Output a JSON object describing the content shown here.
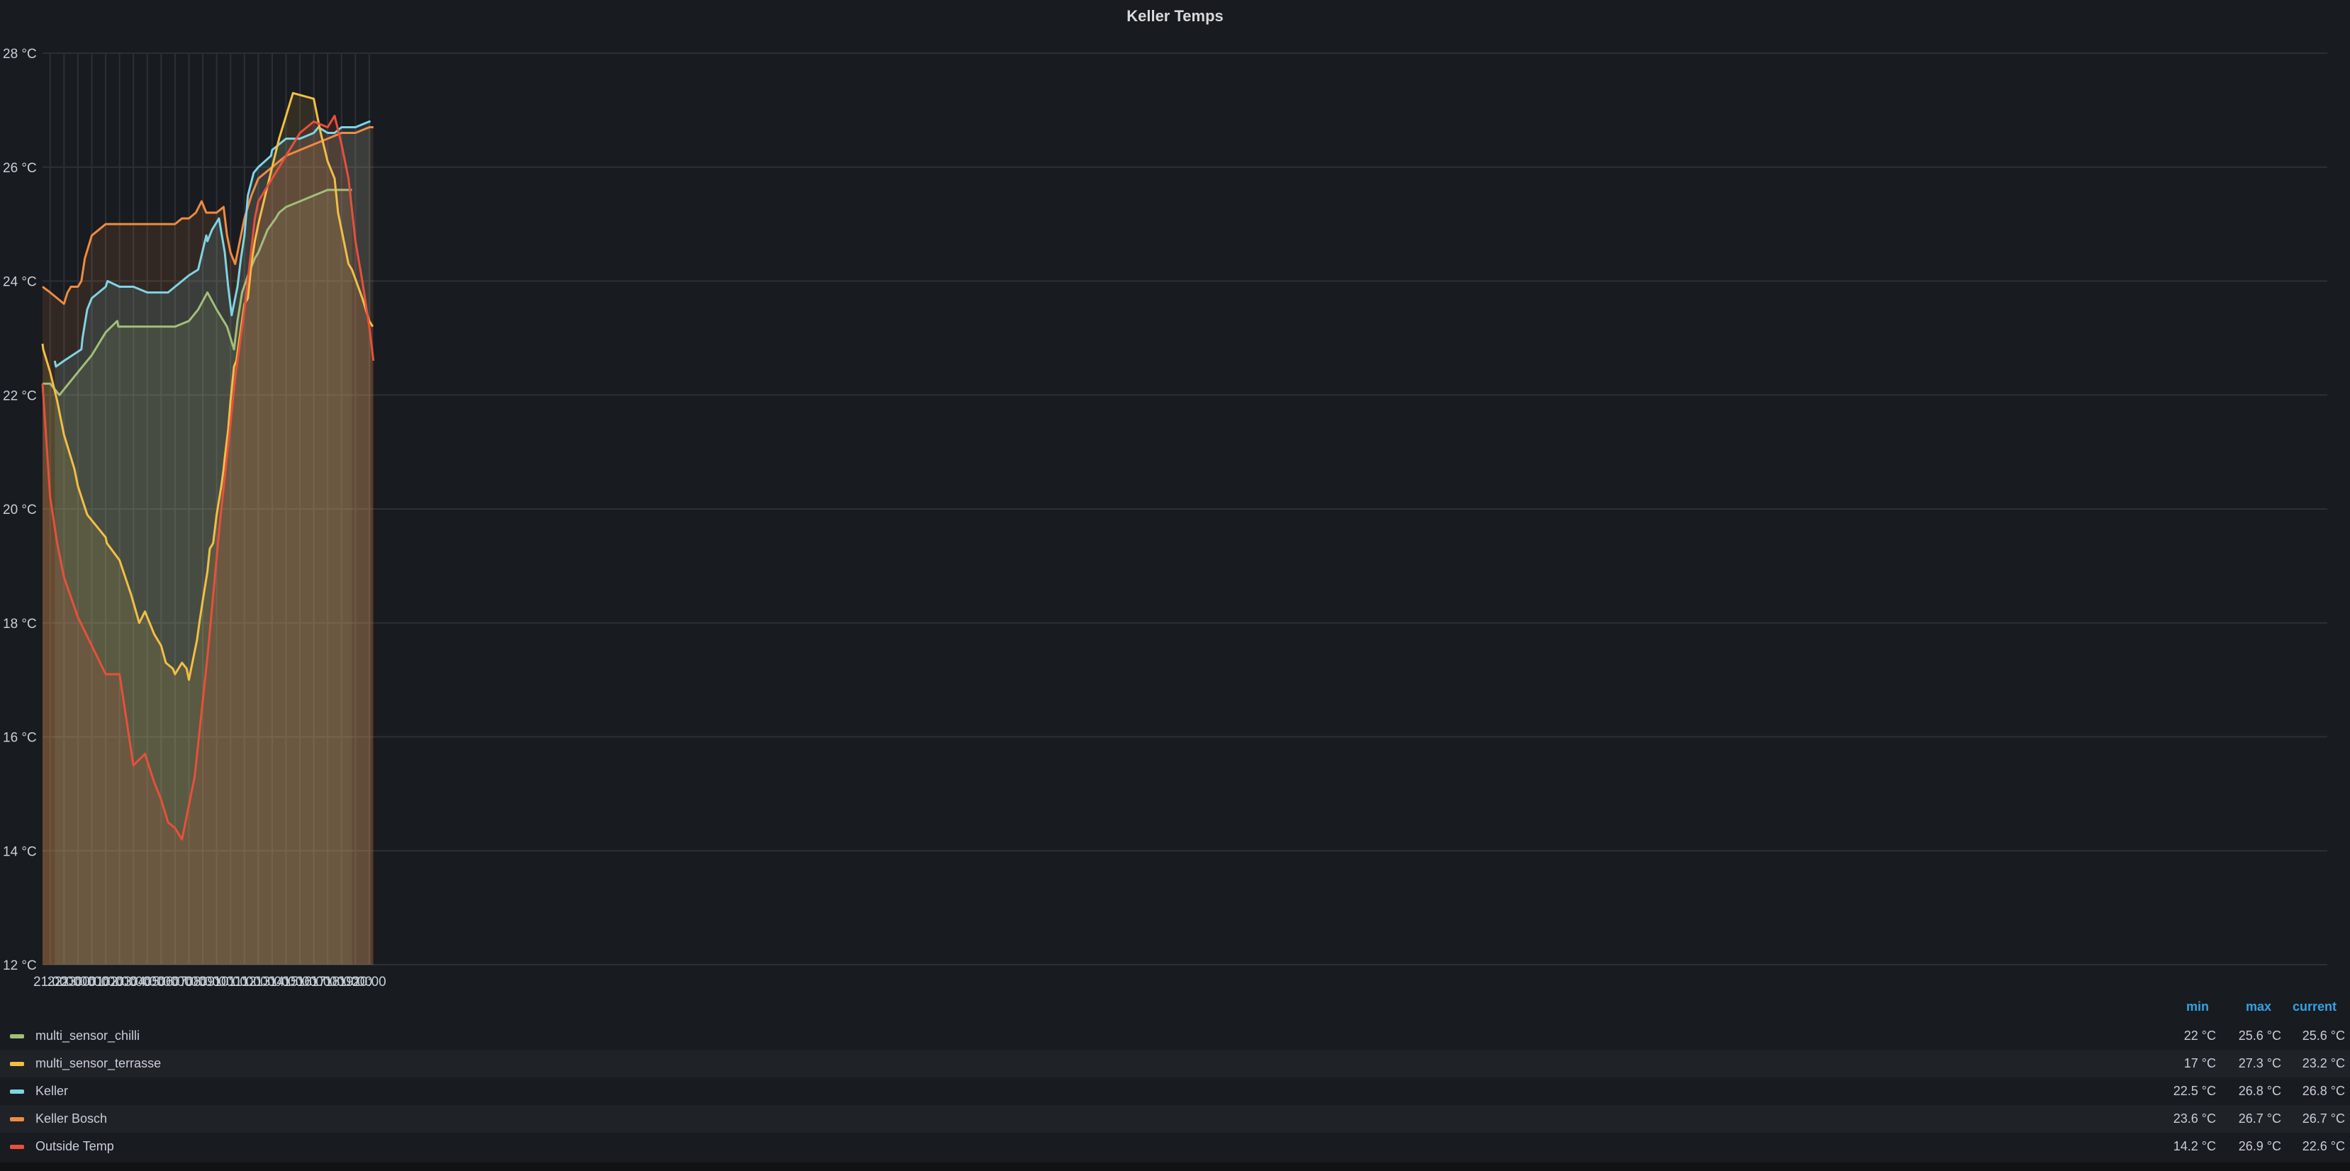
{
  "panel": {
    "title": "Keller Temps"
  },
  "legend": {
    "headers": {
      "min": "min",
      "max": "max",
      "current": "current"
    },
    "items": [
      {
        "name": "multi_sensor_chilli",
        "color": "#a3be7a",
        "min": "22 °C",
        "max": "25.6 °C",
        "current": "25.6 °C"
      },
      {
        "name": "multi_sensor_terrasse",
        "color": "#f2bf46",
        "min": "17 °C",
        "max": "27.3 °C",
        "current": "23.2 °C"
      },
      {
        "name": "Keller",
        "color": "#7fd4e3",
        "min": "22.5 °C",
        "max": "26.8 °C",
        "current": "26.8 °C"
      },
      {
        "name": "Keller Bosch",
        "color": "#f08b42",
        "min": "23.6 °C",
        "max": "26.7 °C",
        "current": "26.7 °C"
      },
      {
        "name": "Outside Temp",
        "color": "#e8503a",
        "min": "14.2 °C",
        "max": "26.9 °C",
        "current": "22.6 °C"
      }
    ]
  },
  "chart_data": {
    "type": "area",
    "title": "Keller Temps",
    "y_unit": "°C",
    "ylim": [
      12,
      28
    ],
    "y_ticks": [
      "12 °C",
      "14 °C",
      "16 °C",
      "18 °C",
      "20 °C",
      "22 °C",
      "24 °C",
      "26 °C",
      "28 °C"
    ],
    "x_range": [
      "20:27",
      "20:18"
    ],
    "x_ticks": [
      "21:00",
      "22:00",
      "23:00",
      "00:00",
      "01:00",
      "02:00",
      "03:00",
      "04:00",
      "05:00",
      "06:00",
      "07:00",
      "08:00",
      "09:00",
      "10:00",
      "11:00",
      "12:00",
      "13:00",
      "14:00",
      "15:00",
      "16:00",
      "17:00",
      "18:00",
      "19:00",
      "20:00"
    ],
    "grid": true,
    "legend": "bottom",
    "series": [
      {
        "name": "Keller Bosch",
        "color": "#f08b42",
        "points": [
          [
            "20:27",
            23.9
          ],
          [
            "21:00",
            23.8
          ],
          [
            "21:30",
            23.7
          ],
          [
            "22:00",
            23.6
          ],
          [
            "22:15",
            23.8
          ],
          [
            "22:30",
            23.9
          ],
          [
            "23:00",
            23.9
          ],
          [
            "23:15",
            24.0
          ],
          [
            "23:30",
            24.4
          ],
          [
            "23:45",
            24.6
          ],
          [
            "00:00",
            24.8
          ],
          [
            "00:30",
            24.9
          ],
          [
            "01:00",
            25.0
          ],
          [
            "01:30",
            25.0
          ],
          [
            "02:00",
            25.0
          ],
          [
            "03:00",
            25.0
          ],
          [
            "04:00",
            25.0
          ],
          [
            "05:00",
            25.0
          ],
          [
            "06:00",
            25.0
          ],
          [
            "06:30",
            25.1
          ],
          [
            "07:00",
            25.1
          ],
          [
            "07:30",
            25.2
          ],
          [
            "07:55",
            25.4
          ],
          [
            "08:15",
            25.2
          ],
          [
            "08:30",
            25.2
          ],
          [
            "09:00",
            25.2
          ],
          [
            "09:30",
            25.3
          ],
          [
            "09:45",
            24.8
          ],
          [
            "10:00",
            24.5
          ],
          [
            "10:20",
            24.3
          ],
          [
            "10:45",
            24.8
          ],
          [
            "11:00",
            25.1
          ],
          [
            "11:30",
            25.5
          ],
          [
            "12:00",
            25.8
          ],
          [
            "12:30",
            25.9
          ],
          [
            "13:00",
            26.0
          ],
          [
            "13:30",
            26.1
          ],
          [
            "14:00",
            26.2
          ],
          [
            "15:00",
            26.3
          ],
          [
            "16:00",
            26.4
          ],
          [
            "17:00",
            26.5
          ],
          [
            "18:00",
            26.6
          ],
          [
            "19:00",
            26.6
          ],
          [
            "20:00",
            26.7
          ],
          [
            "20:18",
            26.7
          ]
        ]
      },
      {
        "name": "Keller",
        "color": "#7fd4e3",
        "points": [
          [
            "21:20",
            22.6
          ],
          [
            "21:25",
            22.5
          ],
          [
            "22:00",
            22.6
          ],
          [
            "23:15",
            22.8
          ],
          [
            "23:20",
            23.0
          ],
          [
            "23:40",
            23.5
          ],
          [
            "00:00",
            23.7
          ],
          [
            "01:00",
            23.9
          ],
          [
            "01:08",
            24.0
          ],
          [
            "02:00",
            23.9
          ],
          [
            "03:00",
            23.9
          ],
          [
            "04:00",
            23.8
          ],
          [
            "05:00",
            23.8
          ],
          [
            "05:30",
            23.8
          ],
          [
            "06:00",
            23.9
          ],
          [
            "06:30",
            24.0
          ],
          [
            "07:00",
            24.1
          ],
          [
            "07:40",
            24.2
          ],
          [
            "08:15",
            24.8
          ],
          [
            "08:20",
            24.7
          ],
          [
            "08:40",
            24.9
          ],
          [
            "09:10",
            25.1
          ],
          [
            "09:35",
            24.5
          ],
          [
            "09:50",
            23.9
          ],
          [
            "10:05",
            23.4
          ],
          [
            "10:30",
            23.9
          ],
          [
            "10:45",
            24.4
          ],
          [
            "11:00",
            24.8
          ],
          [
            "11:15",
            25.5
          ],
          [
            "11:40",
            25.9
          ],
          [
            "12:00",
            26.0
          ],
          [
            "12:55",
            26.2
          ],
          [
            "13:00",
            26.3
          ],
          [
            "14:00",
            26.5
          ],
          [
            "15:00",
            26.5
          ],
          [
            "16:00",
            26.6
          ],
          [
            "16:20",
            26.7
          ],
          [
            "17:00",
            26.6
          ],
          [
            "17:30",
            26.6
          ],
          [
            "18:00",
            26.7
          ],
          [
            "19:00",
            26.7
          ],
          [
            "20:00",
            26.8
          ],
          [
            "20:05",
            26.8
          ]
        ]
      },
      {
        "name": "multi_sensor_chilli",
        "color": "#a3be7a",
        "points": [
          [
            "20:27",
            22.2
          ],
          [
            "21:00",
            22.2
          ],
          [
            "21:40",
            22.0
          ],
          [
            "22:00",
            22.1
          ],
          [
            "23:00",
            22.4
          ],
          [
            "00:00",
            22.7
          ],
          [
            "01:00",
            23.1
          ],
          [
            "01:50",
            23.3
          ],
          [
            "01:55",
            23.2
          ],
          [
            "03:00",
            23.2
          ],
          [
            "04:00",
            23.2
          ],
          [
            "05:00",
            23.2
          ],
          [
            "06:00",
            23.2
          ],
          [
            "07:00",
            23.3
          ],
          [
            "07:40",
            23.5
          ],
          [
            "08:20",
            23.8
          ],
          [
            "09:00",
            23.5
          ],
          [
            "09:45",
            23.2
          ],
          [
            "10:15",
            22.8
          ],
          [
            "10:30",
            23.3
          ],
          [
            "10:50",
            23.8
          ],
          [
            "11:15",
            24.1
          ],
          [
            "11:45",
            24.4
          ],
          [
            "12:00",
            24.5
          ],
          [
            "12:40",
            24.9
          ],
          [
            "13:15",
            25.1
          ],
          [
            "13:30",
            25.2
          ],
          [
            "14:00",
            25.3
          ],
          [
            "15:00",
            25.4
          ],
          [
            "16:00",
            25.5
          ],
          [
            "17:00",
            25.6
          ],
          [
            "18:00",
            25.6
          ],
          [
            "18:45",
            25.6
          ]
        ]
      },
      {
        "name": "multi_sensor_terrasse",
        "color": "#f2bf46",
        "points": [
          [
            "20:27",
            22.9
          ],
          [
            "20:30",
            22.8
          ],
          [
            "21:00",
            22.4
          ],
          [
            "21:30",
            21.9
          ],
          [
            "22:00",
            21.3
          ],
          [
            "22:45",
            20.7
          ],
          [
            "23:00",
            20.4
          ],
          [
            "23:40",
            19.9
          ],
          [
            "00:00",
            19.8
          ],
          [
            "01:00",
            19.5
          ],
          [
            "01:05",
            19.4
          ],
          [
            "02:00",
            19.1
          ],
          [
            "02:50",
            18.5
          ],
          [
            "03:25",
            18.0
          ],
          [
            "03:50",
            18.2
          ],
          [
            "04:30",
            17.8
          ],
          [
            "05:00",
            17.6
          ],
          [
            "05:20",
            17.3
          ],
          [
            "05:50",
            17.2
          ],
          [
            "06:00",
            17.1
          ],
          [
            "06:30",
            17.3
          ],
          [
            "06:50",
            17.2
          ],
          [
            "07:00",
            17.0
          ],
          [
            "07:25",
            17.5
          ],
          [
            "07:35",
            17.7
          ],
          [
            "07:45",
            18.0
          ],
          [
            "08:00",
            18.4
          ],
          [
            "08:20",
            18.9
          ],
          [
            "08:30",
            19.3
          ],
          [
            "08:45",
            19.4
          ],
          [
            "09:00",
            19.9
          ],
          [
            "09:20",
            20.4
          ],
          [
            "09:30",
            20.7
          ],
          [
            "09:35",
            20.9
          ],
          [
            "09:50",
            21.4
          ],
          [
            "10:00",
            21.9
          ],
          [
            "10:15",
            22.5
          ],
          [
            "10:25",
            22.6
          ],
          [
            "11:00",
            23.6
          ],
          [
            "11:15",
            23.7
          ],
          [
            "11:30",
            24.3
          ],
          [
            "11:45",
            24.7
          ],
          [
            "12:00",
            25.0
          ],
          [
            "12:30",
            25.5
          ],
          [
            "13:00",
            26.0
          ],
          [
            "13:30",
            26.5
          ],
          [
            "14:00",
            26.9
          ],
          [
            "14:30",
            27.3
          ],
          [
            "16:00",
            27.2
          ],
          [
            "16:30",
            26.6
          ],
          [
            "17:00",
            26.1
          ],
          [
            "17:30",
            25.8
          ],
          [
            "17:45",
            25.2
          ],
          [
            "18:00",
            24.9
          ],
          [
            "18:30",
            24.3
          ],
          [
            "18:45",
            24.2
          ],
          [
            "19:30",
            23.7
          ],
          [
            "20:00",
            23.3
          ],
          [
            "20:15",
            23.2
          ]
        ]
      },
      {
        "name": "Outside Temp",
        "color": "#e8503a",
        "points": [
          [
            "20:27",
            22.2
          ],
          [
            "21:00",
            20.2
          ],
          [
            "21:30",
            19.4
          ],
          [
            "22:00",
            18.8
          ],
          [
            "23:00",
            18.1
          ],
          [
            "00:00",
            17.6
          ],
          [
            "01:00",
            17.1
          ],
          [
            "02:00",
            17.1
          ],
          [
            "03:00",
            15.5
          ],
          [
            "03:50",
            15.7
          ],
          [
            "04:30",
            15.2
          ],
          [
            "05:00",
            14.9
          ],
          [
            "05:30",
            14.5
          ],
          [
            "06:00",
            14.4
          ],
          [
            "06:30",
            14.2
          ],
          [
            "07:25",
            15.3
          ],
          [
            "08:20",
            17.4
          ],
          [
            "09:15",
            19.8
          ],
          [
            "10:00",
            21.5
          ],
          [
            "10:20",
            22.3
          ],
          [
            "11:00",
            23.5
          ],
          [
            "11:45",
            25.1
          ],
          [
            "12:00",
            25.4
          ],
          [
            "13:00",
            25.8
          ],
          [
            "14:00",
            26.2
          ],
          [
            "15:00",
            26.6
          ],
          [
            "16:00",
            26.8
          ],
          [
            "17:00",
            26.7
          ],
          [
            "17:30",
            26.9
          ],
          [
            "18:00",
            26.4
          ],
          [
            "18:30",
            25.8
          ],
          [
            "19:00",
            24.7
          ],
          [
            "19:30",
            24.0
          ],
          [
            "20:00",
            23.2
          ],
          [
            "20:18",
            22.6
          ]
        ]
      }
    ]
  }
}
